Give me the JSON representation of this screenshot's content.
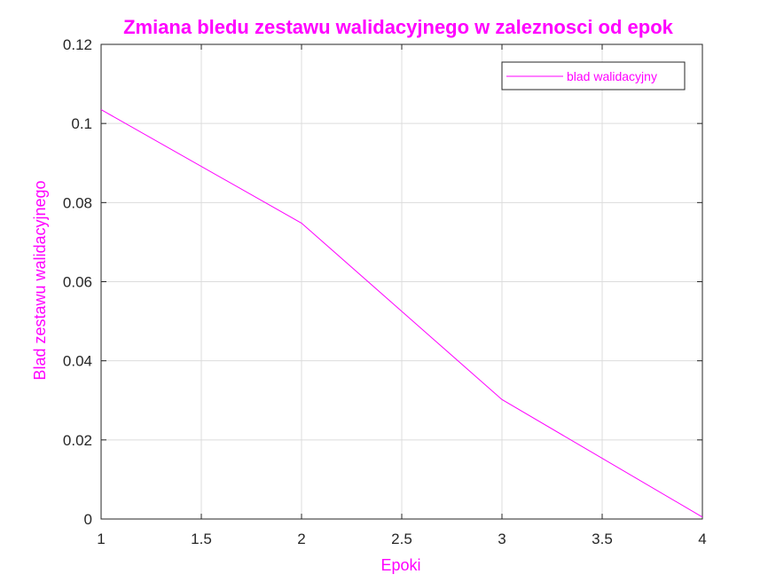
{
  "chart_data": {
    "type": "line",
    "title": "Zmiana bledu zestawu walidacyjnego w zaleznosci od epok",
    "xlabel": "Epoki",
    "ylabel": "Blad zestawu walidacyjnego",
    "xlim": [
      1,
      4
    ],
    "ylim": [
      0,
      0.12
    ],
    "xticks": [
      1,
      1.5,
      2,
      2.5,
      3,
      3.5,
      4
    ],
    "xtick_labels": [
      "1",
      "1.5",
      "2",
      "2.5",
      "3",
      "3.5",
      "4"
    ],
    "yticks": [
      0,
      0.02,
      0.04,
      0.06,
      0.08,
      0.1,
      0.12
    ],
    "ytick_labels": [
      "0",
      "0.02",
      "0.04",
      "0.06",
      "0.08",
      "0.1",
      "0.12"
    ],
    "grid": true,
    "legend_position": "top-right",
    "colors": {
      "accent": "#ff00ff",
      "axis": "#262626",
      "grid": "#dcdcdc"
    },
    "series": [
      {
        "name": "blad walidacyjny",
        "color": "#ff00ff",
        "x": [
          1,
          2,
          3,
          4
        ],
        "y": [
          0.1035,
          0.0748,
          0.0302,
          0.0005
        ]
      }
    ]
  }
}
